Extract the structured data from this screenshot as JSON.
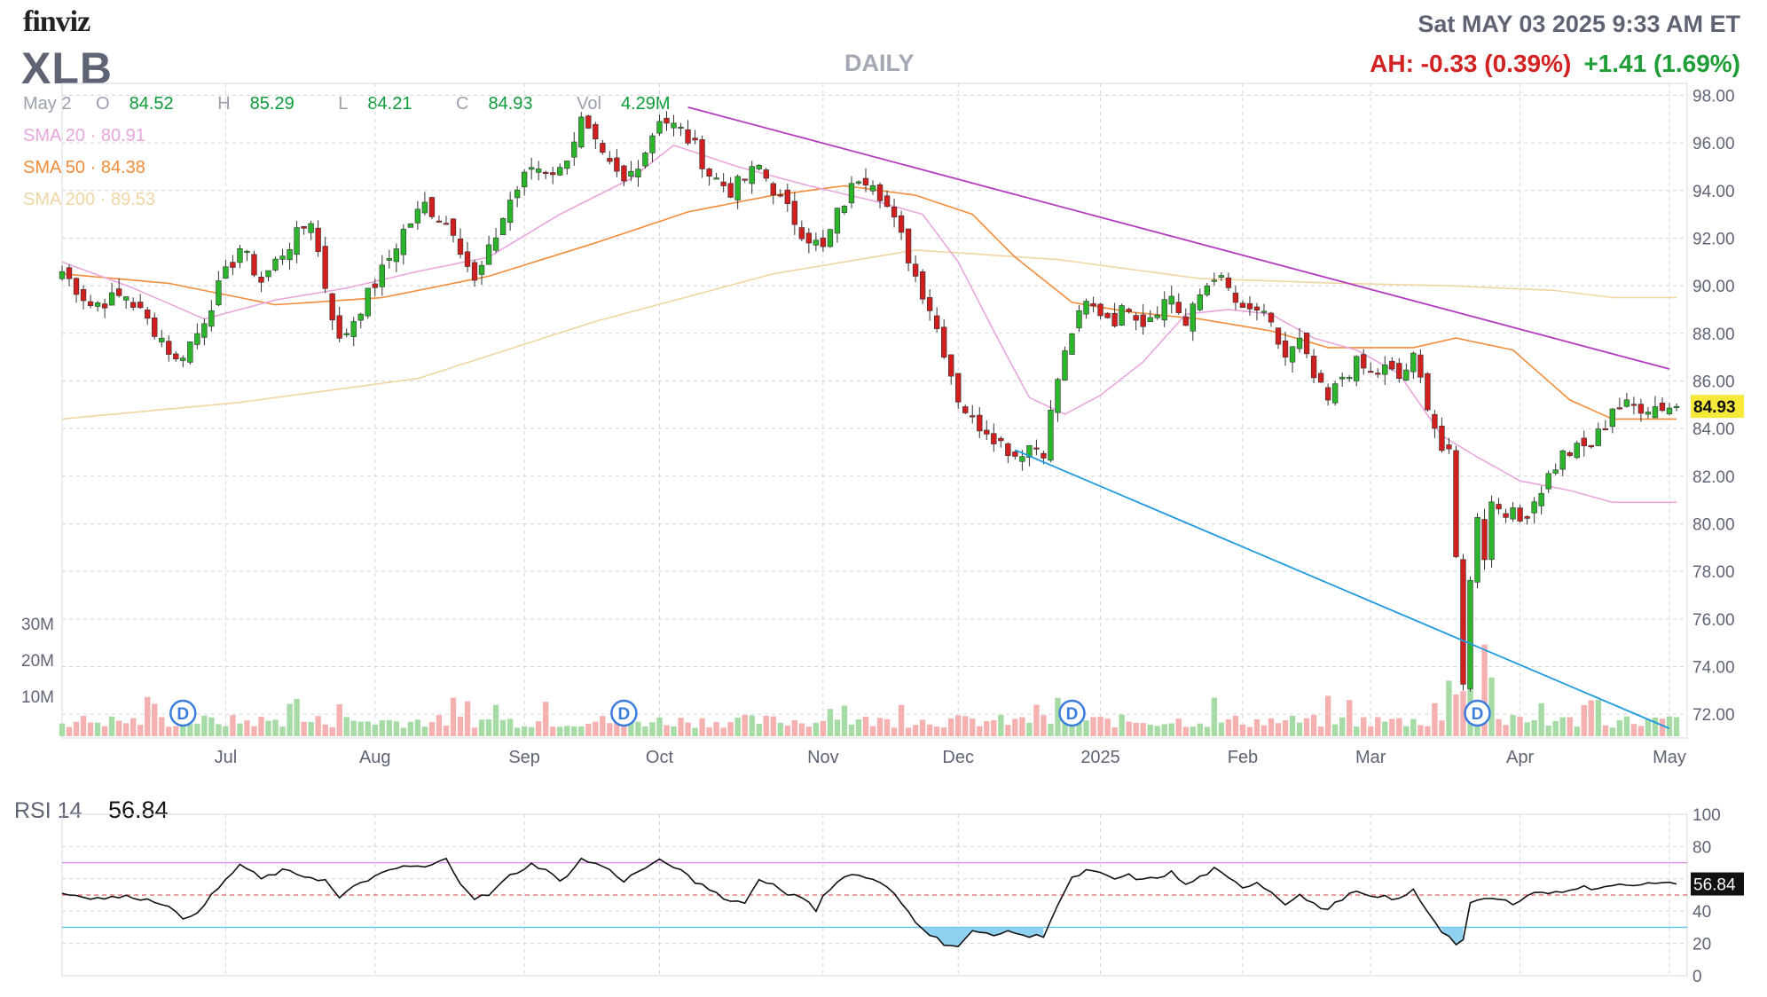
{
  "header": {
    "logo": "finviz",
    "ticker": "XLB",
    "period": "DAILY",
    "datetime": "Sat MAY 03 2025 9:33 AM ET",
    "after_hours": "AH: -0.33 (0.39%)",
    "day_change": "+1.41 (1.69%)"
  },
  "ohlc": {
    "date": "May 2",
    "o_label": "O",
    "o": "84.52",
    "h_label": "H",
    "h": "85.29",
    "l_label": "L",
    "l": "84.21",
    "c_label": "C",
    "c": "84.93",
    "vol_label": "Vol",
    "vol": "4.29M"
  },
  "sma": [
    {
      "label": "SMA 20",
      "sep": "·",
      "value": "80.91",
      "color": "#e9a6dc"
    },
    {
      "label": "SMA 50",
      "sep": "·",
      "value": "84.38",
      "color": "#f28c38"
    },
    {
      "label": "SMA 200",
      "sep": "·",
      "value": "89.53",
      "color": "#f0d6a3"
    }
  ],
  "rsi": {
    "label": "RSI 14",
    "value": "56.84"
  },
  "volume_axis": [
    "30M",
    "20M",
    "10M"
  ],
  "colors": {
    "up": "#2bb52b",
    "down": "#d11e1e",
    "vol_up": "#a6dba6",
    "vol_down": "#f5b0b0",
    "trend_upper": "#b43bbf",
    "trend_lower": "#1e9be0",
    "last_price_bg": "#f7e93a",
    "rsi_upper": "#d88ee6",
    "rsi_lower": "#5bc2ec",
    "rsi_mid": "#e46464"
  },
  "chart_data": {
    "type": "candlestick",
    "symbol": "XLB",
    "last_price": "84.93",
    "price_ylim": [
      71,
      98.5
    ],
    "price_ticks": [
      "98.00",
      "96.00",
      "94.00",
      "92.00",
      "90.00",
      "88.00",
      "86.00",
      "84.00",
      "82.00",
      "80.00",
      "78.00",
      "76.00",
      "74.00",
      "72.00"
    ],
    "x_ticks": [
      {
        "label": "Jul",
        "d": 23
      },
      {
        "label": "Aug",
        "d": 44
      },
      {
        "label": "Sep",
        "d": 65
      },
      {
        "label": "Oct",
        "d": 84
      },
      {
        "label": "Nov",
        "d": 107
      },
      {
        "label": "Dec",
        "d": 126
      },
      {
        "label": "2025",
        "d": 146
      },
      {
        "label": "Feb",
        "d": 166
      },
      {
        "label": "Mar",
        "d": 184
      },
      {
        "label": "Apr",
        "d": 205
      },
      {
        "label": "May",
        "d": 226
      }
    ],
    "dividends": [
      {
        "label": "D",
        "d": 17
      },
      {
        "label": "D",
        "d": 79
      },
      {
        "label": "D",
        "d": 142
      },
      {
        "label": "D",
        "d": 199
      }
    ],
    "close_anchors": [
      [
        0,
        90.6
      ],
      [
        4,
        89.2
      ],
      [
        9,
        89.6
      ],
      [
        14,
        87.8
      ],
      [
        16,
        86.8
      ],
      [
        19,
        88.0
      ],
      [
        22,
        89.9
      ],
      [
        25,
        91.6
      ],
      [
        28,
        90.2
      ],
      [
        31,
        91.4
      ],
      [
        35,
        92.8
      ],
      [
        37,
        90.0
      ],
      [
        39,
        87.6
      ],
      [
        42,
        89.1
      ],
      [
        45,
        90.6
      ],
      [
        48,
        92.3
      ],
      [
        51,
        93.4
      ],
      [
        55,
        92.4
      ],
      [
        58,
        90.1
      ],
      [
        60,
        91.4
      ],
      [
        63,
        93.6
      ],
      [
        66,
        95.0
      ],
      [
        70,
        94.8
      ],
      [
        73,
        96.9
      ],
      [
        76,
        95.3
      ],
      [
        79,
        94.3
      ],
      [
        82,
        95.7
      ],
      [
        84,
        97.1
      ],
      [
        87,
        96.5
      ],
      [
        89,
        95.8
      ],
      [
        91,
        94.7
      ],
      [
        94,
        94.0
      ],
      [
        98,
        95.0
      ],
      [
        101,
        93.6
      ],
      [
        104,
        92.3
      ],
      [
        107,
        91.5
      ],
      [
        109,
        93.0
      ],
      [
        112,
        94.6
      ],
      [
        114,
        94.5
      ],
      [
        116,
        93.3
      ],
      [
        118,
        92.0
      ],
      [
        120,
        90.4
      ],
      [
        122,
        89.1
      ],
      [
        124,
        87.3
      ],
      [
        126,
        85.3
      ],
      [
        128,
        84.3
      ],
      [
        130,
        84.0
      ],
      [
        132,
        83.4
      ],
      [
        134,
        82.9
      ],
      [
        136,
        83.3
      ],
      [
        138,
        83.1
      ],
      [
        140,
        86.1
      ],
      [
        142,
        88.1
      ],
      [
        144,
        89.2
      ],
      [
        146,
        88.9
      ],
      [
        148,
        88.6
      ],
      [
        150,
        89.2
      ],
      [
        152,
        88.5
      ],
      [
        154,
        89.1
      ],
      [
        156,
        89.6
      ],
      [
        158,
        88.3
      ],
      [
        160,
        89.6
      ],
      [
        162,
        90.5
      ],
      [
        164,
        89.8
      ],
      [
        166,
        88.8
      ],
      [
        168,
        89.0
      ],
      [
        170,
        88.2
      ],
      [
        172,
        87.0
      ],
      [
        174,
        87.6
      ],
      [
        176,
        86.1
      ],
      [
        178,
        85.1
      ],
      [
        180,
        86.2
      ],
      [
        182,
        86.7
      ],
      [
        184,
        86.3
      ],
      [
        186,
        86.5
      ],
      [
        188,
        86.1
      ],
      [
        190,
        86.9
      ],
      [
        192,
        85.1
      ],
      [
        194,
        83.1
      ],
      [
        195,
        82.8
      ],
      [
        196,
        78.5
      ],
      [
        197,
        73.5
      ],
      [
        198,
        77.5
      ],
      [
        199,
        80.5
      ],
      [
        200,
        78.7
      ],
      [
        201,
        80.9
      ],
      [
        203,
        80.6
      ],
      [
        205,
        80.1
      ],
      [
        207,
        81.0
      ],
      [
        209,
        82.0
      ],
      [
        211,
        82.9
      ],
      [
        213,
        83.1
      ],
      [
        215,
        83.3
      ],
      [
        217,
        84.2
      ],
      [
        218,
        84.93
      ]
    ],
    "sma20_anchors": [
      [
        0,
        91.0
      ],
      [
        10,
        89.9
      ],
      [
        20,
        88.6
      ],
      [
        30,
        89.4
      ],
      [
        40,
        89.9
      ],
      [
        50,
        90.6
      ],
      [
        60,
        91.2
      ],
      [
        70,
        93.0
      ],
      [
        80,
        94.5
      ],
      [
        86,
        95.9
      ],
      [
        95,
        95.0
      ],
      [
        105,
        94.2
      ],
      [
        115,
        93.5
      ],
      [
        121,
        93.0
      ],
      [
        126,
        91.0
      ],
      [
        131,
        88.1
      ],
      [
        136,
        85.3
      ],
      [
        141,
        84.6
      ],
      [
        146,
        85.4
      ],
      [
        152,
        86.8
      ],
      [
        158,
        88.8
      ],
      [
        164,
        89.0
      ],
      [
        170,
        88.8
      ],
      [
        176,
        87.8
      ],
      [
        182,
        87.3
      ],
      [
        188,
        86.3
      ],
      [
        194,
        83.7
      ],
      [
        199,
        82.8
      ],
      [
        205,
        81.8
      ],
      [
        212,
        81.4
      ],
      [
        218,
        80.9
      ]
    ],
    "sma50_anchors": [
      [
        0,
        90.5
      ],
      [
        15,
        90.1
      ],
      [
        30,
        89.2
      ],
      [
        45,
        89.5
      ],
      [
        60,
        90.4
      ],
      [
        75,
        91.8
      ],
      [
        88,
        93.1
      ],
      [
        100,
        93.8
      ],
      [
        110,
        94.2
      ],
      [
        120,
        93.8
      ],
      [
        128,
        93.0
      ],
      [
        134,
        91.2
      ],
      [
        142,
        89.3
      ],
      [
        150,
        88.9
      ],
      [
        160,
        88.6
      ],
      [
        170,
        88.1
      ],
      [
        178,
        87.4
      ],
      [
        190,
        87.4
      ],
      [
        196,
        87.8
      ],
      [
        204,
        87.3
      ],
      [
        212,
        85.2
      ],
      [
        218,
        84.4
      ]
    ],
    "sma200_anchors": [
      [
        0,
        84.4
      ],
      [
        25,
        85.1
      ],
      [
        50,
        86.1
      ],
      [
        75,
        88.5
      ],
      [
        100,
        90.5
      ],
      [
        120,
        91.5
      ],
      [
        140,
        91.1
      ],
      [
        160,
        90.3
      ],
      [
        180,
        90.1
      ],
      [
        195,
        90.0
      ],
      [
        210,
        89.8
      ],
      [
        218,
        89.5
      ]
    ],
    "trendlines": [
      {
        "name": "upper",
        "from": [
          88,
          97.5
        ],
        "to": [
          226,
          86.5
        ]
      },
      {
        "name": "lower",
        "from": [
          134,
          83.1
        ],
        "to": [
          226,
          71.4
        ]
      }
    ],
    "volume_ylim": [
      0,
      35
    ],
    "rsi_anchors": [
      [
        0,
        51
      ],
      [
        5,
        48
      ],
      [
        10,
        49
      ],
      [
        15,
        44
      ],
      [
        17,
        34
      ],
      [
        19,
        40
      ],
      [
        23,
        59
      ],
      [
        25,
        69
      ],
      [
        28,
        60
      ],
      [
        31,
        65
      ],
      [
        34,
        62
      ],
      [
        37,
        59
      ],
      [
        39,
        48
      ],
      [
        42,
        58
      ],
      [
        45,
        63
      ],
      [
        48,
        68
      ],
      [
        51,
        67
      ],
      [
        54,
        72
      ],
      [
        56,
        58
      ],
      [
        58,
        48
      ],
      [
        60,
        50
      ],
      [
        63,
        62
      ],
      [
        66,
        69
      ],
      [
        68,
        66
      ],
      [
        70,
        58
      ],
      [
        73,
        72
      ],
      [
        76,
        68
      ],
      [
        79,
        59
      ],
      [
        82,
        67
      ],
      [
        84,
        71
      ],
      [
        86,
        68
      ],
      [
        89,
        58
      ],
      [
        91,
        54
      ],
      [
        94,
        46
      ],
      [
        96,
        46
      ],
      [
        98,
        59
      ],
      [
        100,
        57
      ],
      [
        102,
        51
      ],
      [
        104,
        48
      ],
      [
        106,
        41
      ],
      [
        107,
        50
      ],
      [
        109,
        58
      ],
      [
        111,
        63
      ],
      [
        113,
        61
      ],
      [
        116,
        55
      ],
      [
        118,
        45
      ],
      [
        120,
        34
      ],
      [
        122,
        26
      ],
      [
        124,
        20
      ],
      [
        126,
        18
      ],
      [
        128,
        27
      ],
      [
        131,
        26
      ],
      [
        134,
        27
      ],
      [
        136,
        24
      ],
      [
        138,
        25
      ],
      [
        140,
        44
      ],
      [
        142,
        60
      ],
      [
        144,
        65
      ],
      [
        146,
        63
      ],
      [
        148,
        60
      ],
      [
        150,
        62
      ],
      [
        152,
        59
      ],
      [
        154,
        61
      ],
      [
        156,
        64
      ],
      [
        158,
        56
      ],
      [
        160,
        61
      ],
      [
        162,
        66
      ],
      [
        164,
        60
      ],
      [
        166,
        55
      ],
      [
        168,
        58
      ],
      [
        170,
        52
      ],
      [
        172,
        45
      ],
      [
        174,
        50
      ],
      [
        176,
        44
      ],
      [
        178,
        41
      ],
      [
        180,
        48
      ],
      [
        182,
        52
      ],
      [
        184,
        48
      ],
      [
        186,
        49
      ],
      [
        188,
        47
      ],
      [
        190,
        53
      ],
      [
        192,
        40
      ],
      [
        194,
        28
      ],
      [
        196,
        20
      ],
      [
        197,
        22
      ],
      [
        198,
        44
      ],
      [
        200,
        48
      ],
      [
        202,
        47
      ],
      [
        204,
        45
      ],
      [
        206,
        50
      ],
      [
        208,
        52
      ],
      [
        210,
        51
      ],
      [
        212,
        54
      ],
      [
        214,
        55
      ],
      [
        216,
        53
      ],
      [
        218,
        56.84
      ]
    ],
    "rsi_ylim": [
      0,
      100
    ],
    "rsi_ticks": [
      "100",
      "80",
      "60",
      "40",
      "20",
      "0"
    ],
    "rsi_levels": {
      "overbought": 70,
      "oversold": 30,
      "mid": 50
    },
    "n_days": 228
  }
}
